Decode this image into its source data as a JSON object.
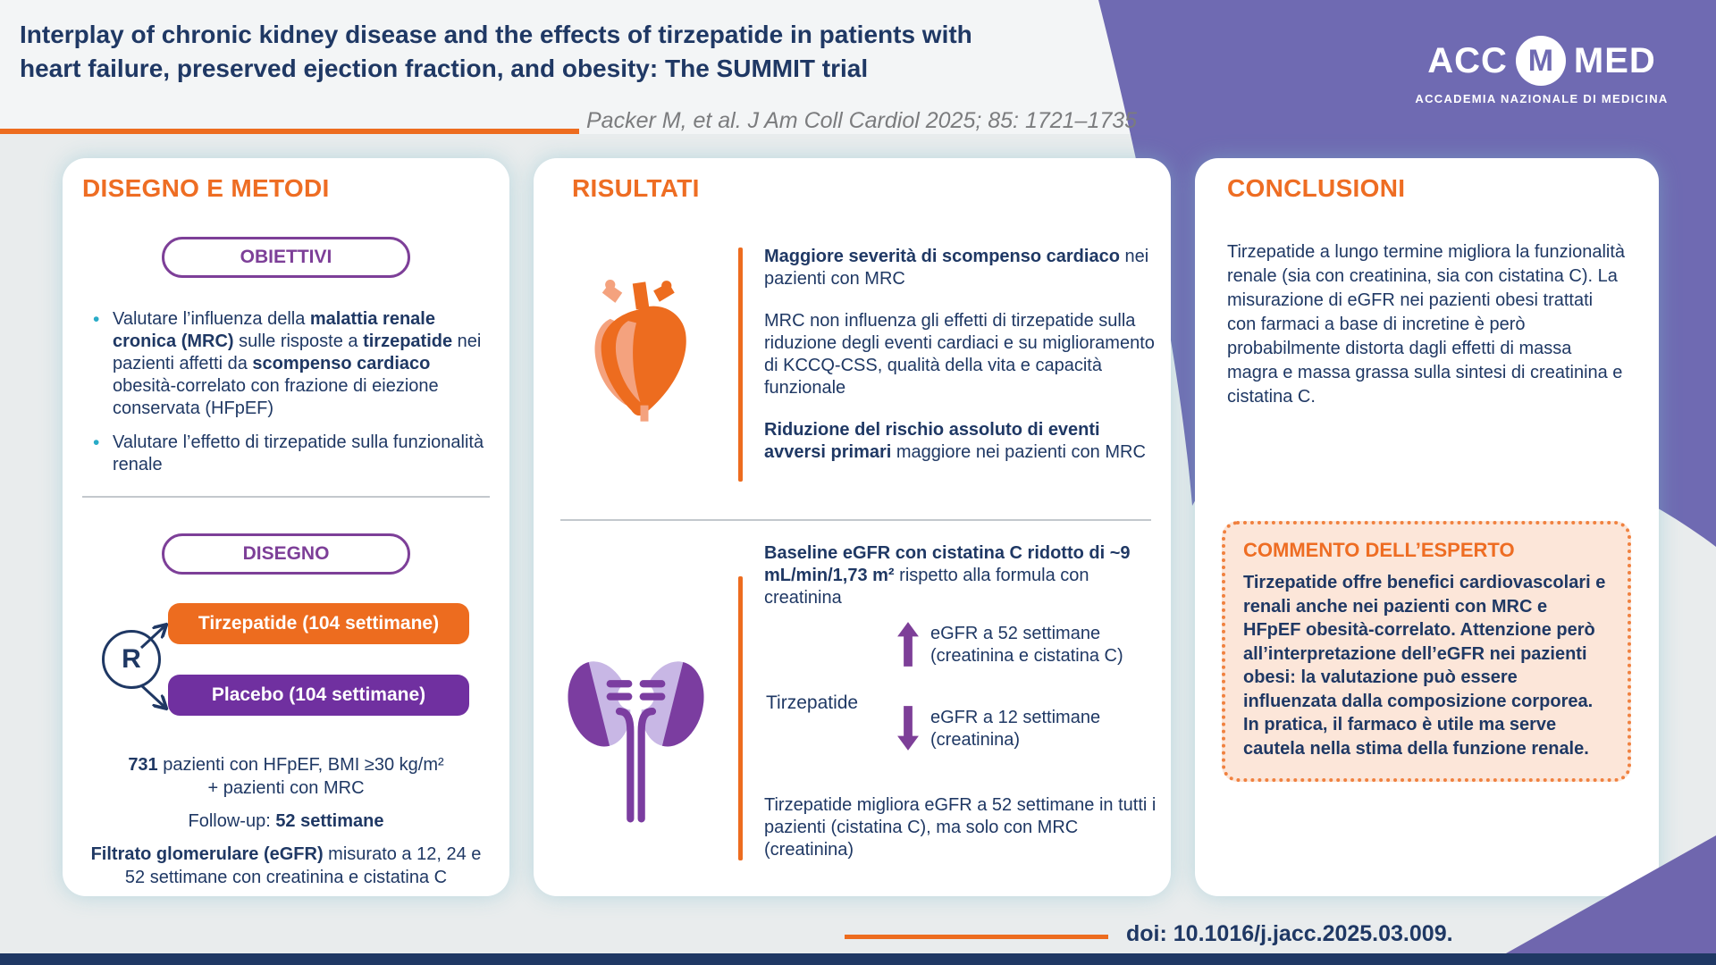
{
  "colors": {
    "navy": "#1f3864",
    "orange": "#ed6c1f",
    "purple": "#7d3f98",
    "button_purple": "#7030a0",
    "teal_bullet": "#29abc7",
    "header_purple": "#6f6ab2",
    "expert_bg": "#fce6d9"
  },
  "header": {
    "title_line1": "Interplay of chronic kidney disease and the effects of tirzepatide in patients with",
    "title_line2": "heart failure, preserved ejection fraction, and obesity: The SUMMIT trial",
    "citation": "Packer M, et al. J Am Coll Cardiol 2025; 85: 1721–1735",
    "logo_acc": "ACC",
    "logo_m": "M",
    "logo_med": "MED",
    "logo_subtitle": "ACCADEMIA NAZIONALE DI MEDICINA"
  },
  "design": {
    "title": "DISEGNO E METODI",
    "objectives_pill": "OBIETTIVI",
    "bullet1": [
      {
        "t": "Valutare l’influenza della "
      },
      {
        "t": "malattia renale cronica (MRC)",
        "b": true
      },
      {
        "t": " sulle risposte a "
      },
      {
        "t": "tirzepatide",
        "b": true
      },
      {
        "t": " nei pazienti affetti da "
      },
      {
        "t": "scompenso cardiaco",
        "b": true
      },
      {
        "t": " obesità-correlato con frazione di eiezione conservata (HFpEF)"
      }
    ],
    "bullet2": [
      {
        "t": "Valutare l’effetto di tirzepatide sulla funzionalità renale"
      }
    ],
    "design_pill": "DISEGNO",
    "randomization_letter": "R",
    "arm_tirzepatide": "Tirzepatide (104 settimane)",
    "arm_placebo": "Placebo (104 settimane)",
    "stat1_line1": [
      {
        "t": "731",
        "b": true
      },
      {
        "t": " pazienti con HFpEF, BMI ≥30 kg/m²"
      }
    ],
    "stat1_line2": "+ pazienti con MRC",
    "stat2": [
      {
        "t": "Follow-up: "
      },
      {
        "t": "52 settimane",
        "b": true
      }
    ],
    "stat3": [
      {
        "t": "Filtrato glomerulare (eGFR)",
        "b": true
      },
      {
        "t": " misurato a 12, 24 e 52 settimane con creatinina e cistatina C"
      }
    ]
  },
  "results": {
    "title": "RISULTATI",
    "top_p1": [
      {
        "t": "Maggiore severità di scompenso cardiaco",
        "b": true
      },
      {
        "t": " nei pazienti con MRC"
      }
    ],
    "top_p2": [
      {
        "t": "MRC non influenza gli effetti di tirzepatide sulla riduzione degli eventi cardiaci e su miglioramento di KCCQ-CSS, qualità della vita e capacità funzionale"
      }
    ],
    "top_p3": [
      {
        "t": "Riduzione del rischio assoluto di eventi avversi primari",
        "b": true
      },
      {
        "t": " maggiore nei pazienti con MRC"
      }
    ],
    "bottom_p1": [
      {
        "t": "Baseline eGFR con cistatina C ridotto di ~9 mL/min/1,73 m²",
        "b": true
      },
      {
        "t": " rispetto alla formula con creatinina"
      }
    ],
    "drug_label": "Tirzepatide",
    "up_item": "eGFR a 52 settimane (creatinina e cistatina C)",
    "down_item": "eGFR a 12 settimane (creatinina)",
    "bottom_p2": "Tirzepatide migliora eGFR a 52 settimane in tutti i pazienti (cistatina C), ma solo con MRC (creatinina)"
  },
  "conclusions": {
    "title": "CONCLUSIONI",
    "paragraph": "Tirzepatide a lungo termine migliora la funzionalità renale (sia con creatinina, sia con cistatina C). La misurazione di eGFR nei pazienti obesi trattati con farmaci a base di incretine è però probabilmente distorta dagli effetti di massa magra e massa grassa sulla sintesi di creatinina e cistatina C.",
    "expert_title": "COMMENTO DELL’ESPERTO",
    "expert_body": "Tirzepatide offre benefici cardiovascolari e renali anche nei pazienti con MRC e HFpEF obesità-correlato. Attenzione però all’interpretazione dell’eGFR nei pazienti obesi: la valutazione può essere influenzata dalla composizione corporea. In pratica, il farmaco è utile ma serve cautela nella stima della funzione renale."
  },
  "footer": {
    "doi": "doi: 10.1016/j.jacc.2025.03.009."
  }
}
